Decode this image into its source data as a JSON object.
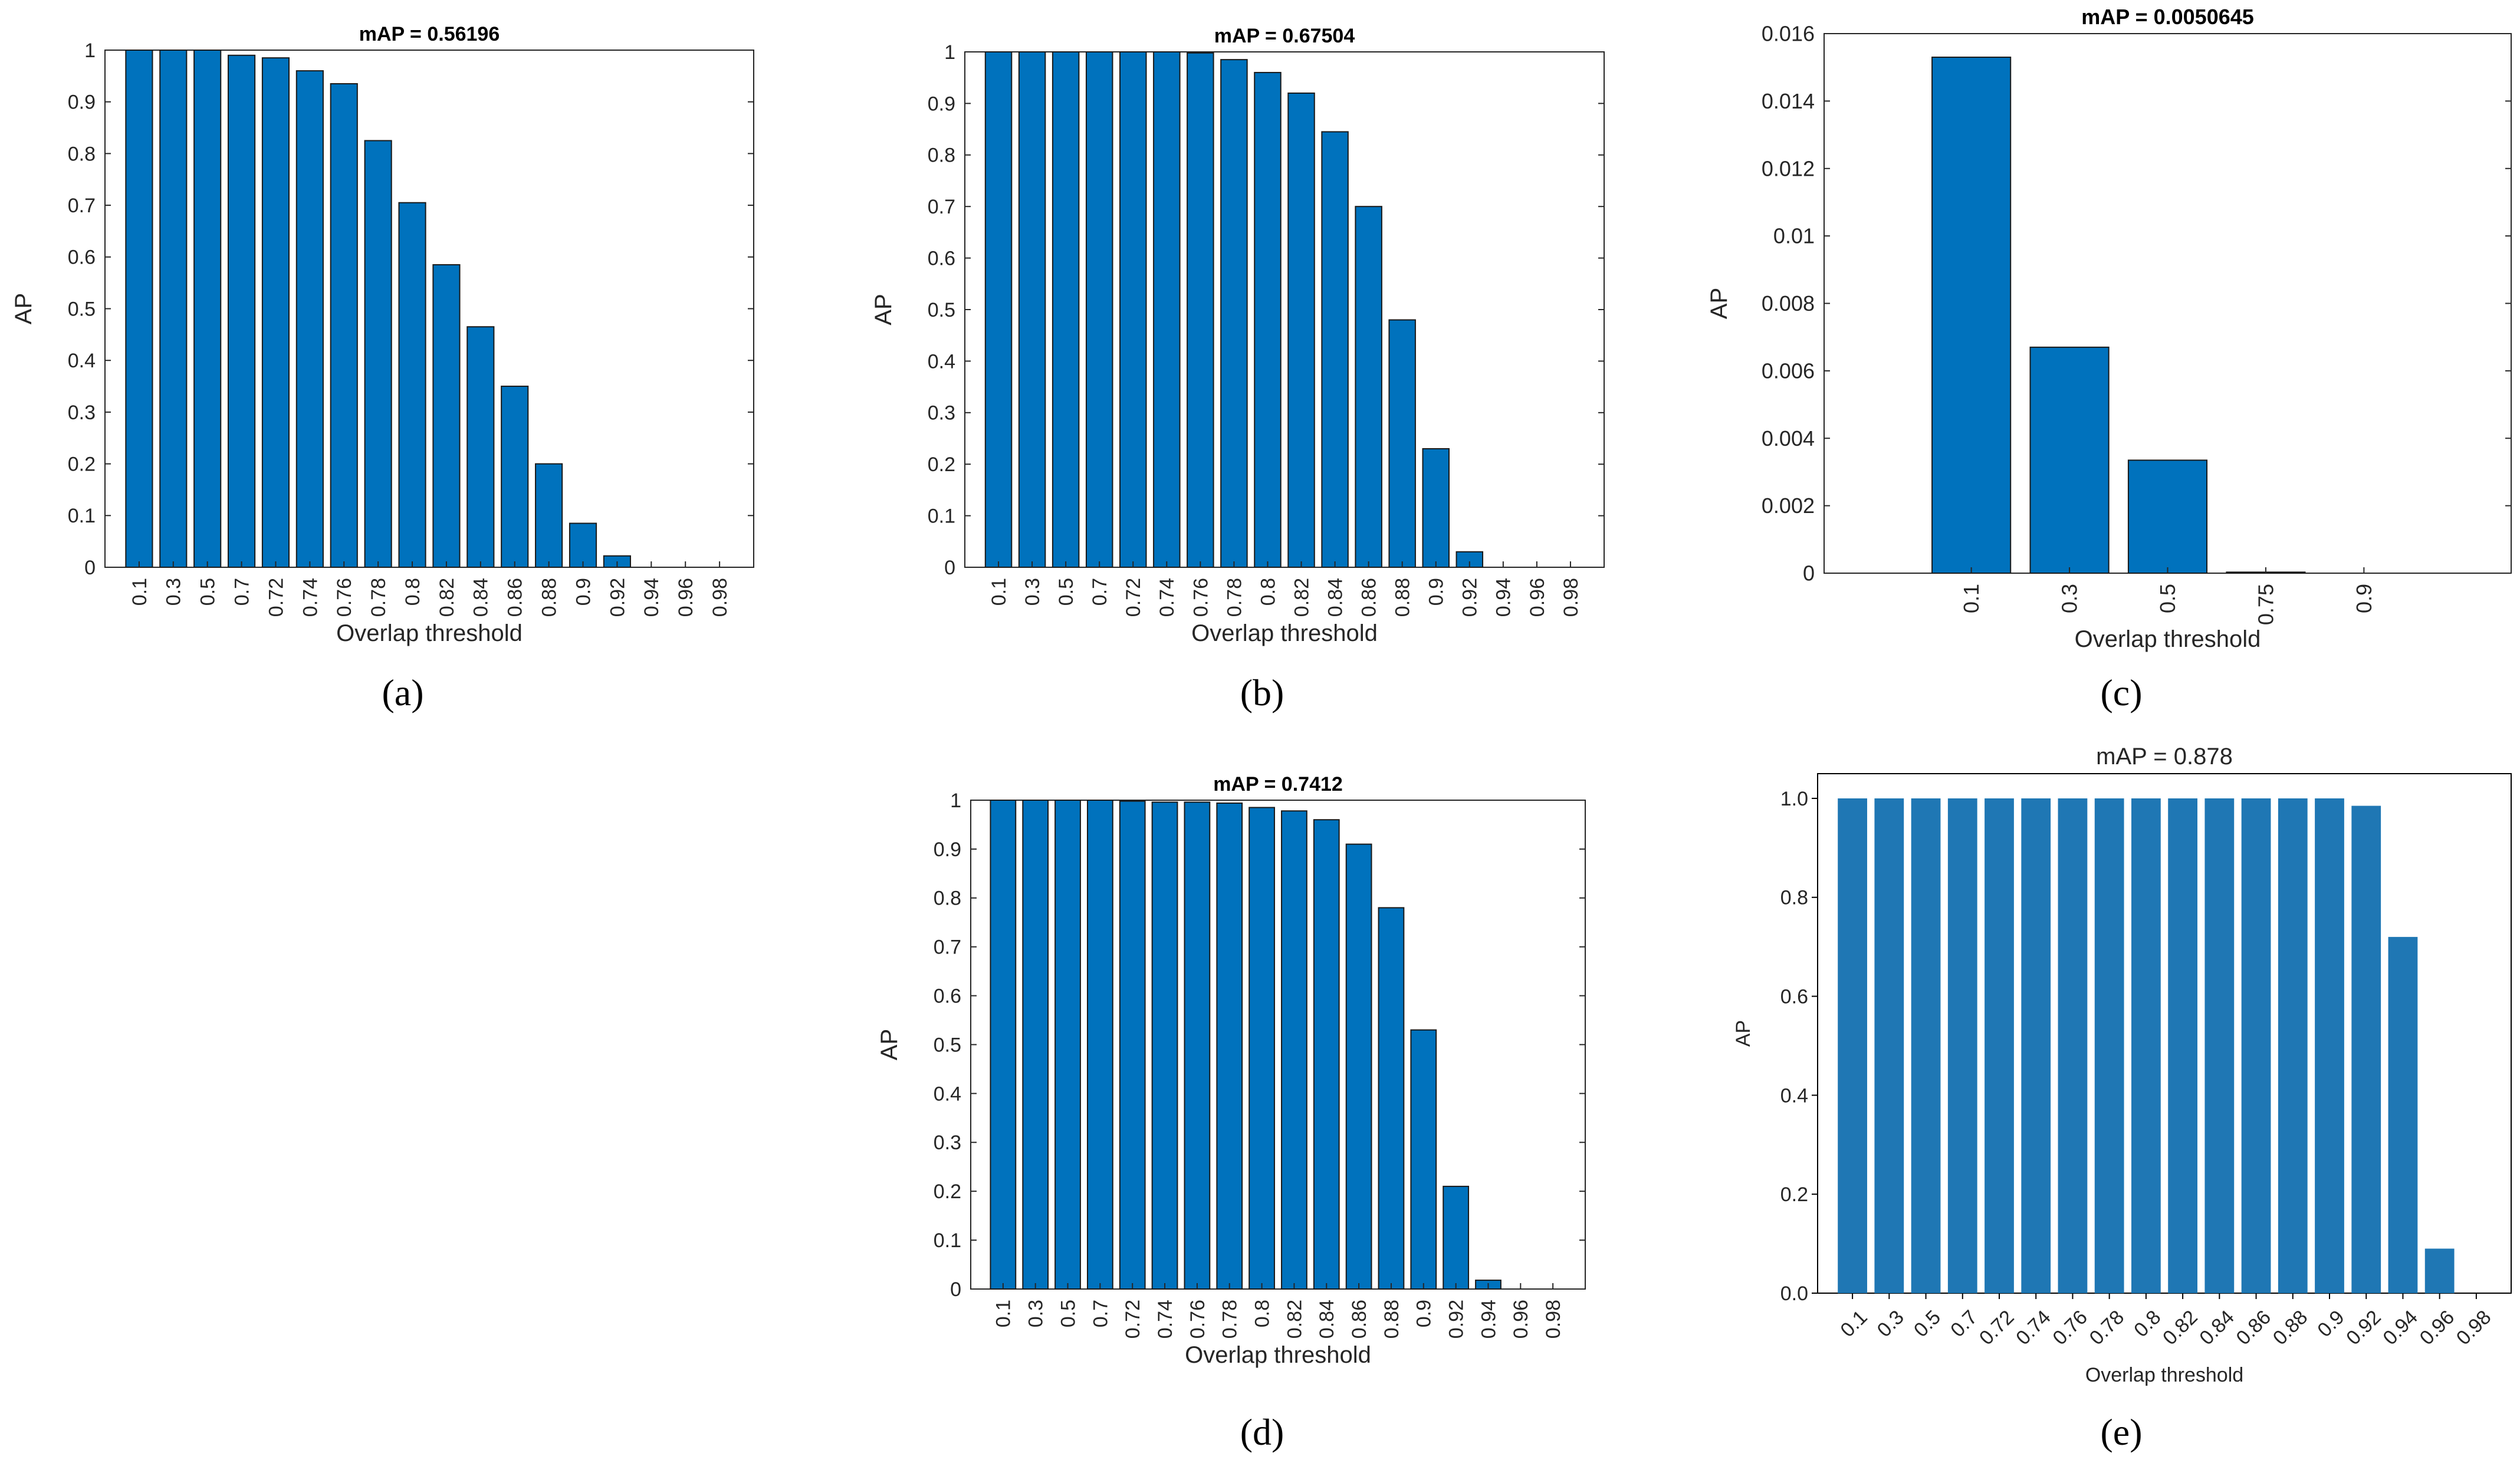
{
  "figure": {
    "captions": [
      "(a)",
      "(b)",
      "(c)",
      "(d)",
      "(e)"
    ]
  },
  "colors": {
    "bar_matlab": "#0072bd",
    "bar_edge": "#1a1a1a",
    "bar_python": "#1f77b4",
    "axis": "#262626"
  },
  "chart_data": [
    {
      "id": "a",
      "type": "bar",
      "style": "matlab",
      "title": "mAP = 0.56196",
      "xlabel": "Overlap threshold",
      "ylabel": "AP",
      "ylim": [
        0,
        1
      ],
      "yticks": [
        0,
        0.1,
        0.2,
        0.3,
        0.4,
        0.5,
        0.6,
        0.7,
        0.8,
        0.9,
        1
      ],
      "ytick_labels": [
        "0",
        "0.1",
        "0.2",
        "0.3",
        "0.4",
        "0.5",
        "0.6",
        "0.7",
        "0.8",
        "0.9",
        "1"
      ],
      "categories": [
        "0.1",
        "0.3",
        "0.5",
        "0.7",
        "0.72",
        "0.74",
        "0.76",
        "0.78",
        "0.8",
        "0.82",
        "0.84",
        "0.86",
        "0.88",
        "0.9",
        "0.92",
        "0.94",
        "0.96",
        "0.98"
      ],
      "values": [
        1.0,
        1.0,
        1.0,
        0.99,
        0.985,
        0.96,
        0.935,
        0.825,
        0.705,
        0.585,
        0.465,
        0.35,
        0.2,
        0.085,
        0.022,
        0,
        0,
        0
      ]
    },
    {
      "id": "b",
      "type": "bar",
      "style": "matlab",
      "title": "mAP = 0.67504",
      "xlabel": "Overlap threshold",
      "ylabel": "AP",
      "ylim": [
        0,
        1
      ],
      "yticks": [
        0,
        0.1,
        0.2,
        0.3,
        0.4,
        0.5,
        0.6,
        0.7,
        0.8,
        0.9,
        1
      ],
      "ytick_labels": [
        "0",
        "0.1",
        "0.2",
        "0.3",
        "0.4",
        "0.5",
        "0.6",
        "0.7",
        "0.8",
        "0.9",
        "1"
      ],
      "categories": [
        "0.1",
        "0.3",
        "0.5",
        "0.7",
        "0.72",
        "0.74",
        "0.76",
        "0.78",
        "0.8",
        "0.82",
        "0.84",
        "0.86",
        "0.88",
        "0.9",
        "0.92",
        "0.94",
        "0.96",
        "0.98"
      ],
      "values": [
        1.0,
        1.0,
        1.0,
        1.0,
        1.0,
        1.0,
        0.998,
        0.985,
        0.96,
        0.92,
        0.845,
        0.7,
        0.48,
        0.23,
        0.03,
        0,
        0,
        0
      ]
    },
    {
      "id": "c",
      "type": "bar",
      "style": "matlab",
      "title": "mAP = 0.0050645",
      "xlabel": "Overlap threshold",
      "ylabel": "AP",
      "ylim": [
        0,
        0.016
      ],
      "yticks": [
        0,
        0.002,
        0.004,
        0.006,
        0.008,
        0.01,
        0.012,
        0.014,
        0.016
      ],
      "ytick_labels": [
        "0",
        "0.002",
        "0.004",
        "0.006",
        "0.008",
        "0.01",
        "0.012",
        "0.014",
        "0.016"
      ],
      "categories": [
        "0.1",
        "0.3",
        "0.5",
        "0.75",
        "0.9"
      ],
      "values": [
        0.0153,
        0.0067,
        0.00335,
        3e-05,
        0
      ]
    },
    {
      "id": "d",
      "type": "bar",
      "style": "matlab",
      "title": "mAP = 0.7412",
      "xlabel": "Overlap threshold",
      "ylabel": "AP",
      "ylim": [
        0,
        1
      ],
      "yticks": [
        0,
        0.1,
        0.2,
        0.3,
        0.4,
        0.5,
        0.6,
        0.7,
        0.8,
        0.9,
        1
      ],
      "ytick_labels": [
        "0",
        "0.1",
        "0.2",
        "0.3",
        "0.4",
        "0.5",
        "0.6",
        "0.7",
        "0.8",
        "0.9",
        "1"
      ],
      "categories": [
        "0.1",
        "0.3",
        "0.5",
        "0.7",
        "0.72",
        "0.74",
        "0.76",
        "0.78",
        "0.8",
        "0.82",
        "0.84",
        "0.86",
        "0.88",
        "0.9",
        "0.92",
        "0.94",
        "0.96",
        "0.98"
      ],
      "values": [
        1.0,
        1.0,
        1.0,
        1.0,
        0.998,
        0.996,
        0.996,
        0.994,
        0.985,
        0.978,
        0.96,
        0.91,
        0.78,
        0.53,
        0.21,
        0.018,
        0,
        0
      ]
    },
    {
      "id": "e",
      "type": "bar",
      "style": "python",
      "title": "mAP = 0.878",
      "xlabel": "Overlap threshold",
      "ylabel": "AP",
      "ylim": [
        0,
        1.05
      ],
      "yticks": [
        0,
        0.2,
        0.4,
        0.6,
        0.8,
        1.0
      ],
      "ytick_labels": [
        "0.0",
        "0.2",
        "0.4",
        "0.6",
        "0.8",
        "1.0"
      ],
      "categories": [
        "0.1",
        "0.3",
        "0.5",
        "0.7",
        "0.72",
        "0.74",
        "0.76",
        "0.78",
        "0.8",
        "0.82",
        "0.84",
        "0.86",
        "0.88",
        "0.9",
        "0.92",
        "0.94",
        "0.96",
        "0.98"
      ],
      "values": [
        1.0,
        1.0,
        1.0,
        1.0,
        1.0,
        1.0,
        1.0,
        1.0,
        1.0,
        1.0,
        1.0,
        1.0,
        1.0,
        1.0,
        0.985,
        0.72,
        0.09,
        0
      ]
    }
  ]
}
